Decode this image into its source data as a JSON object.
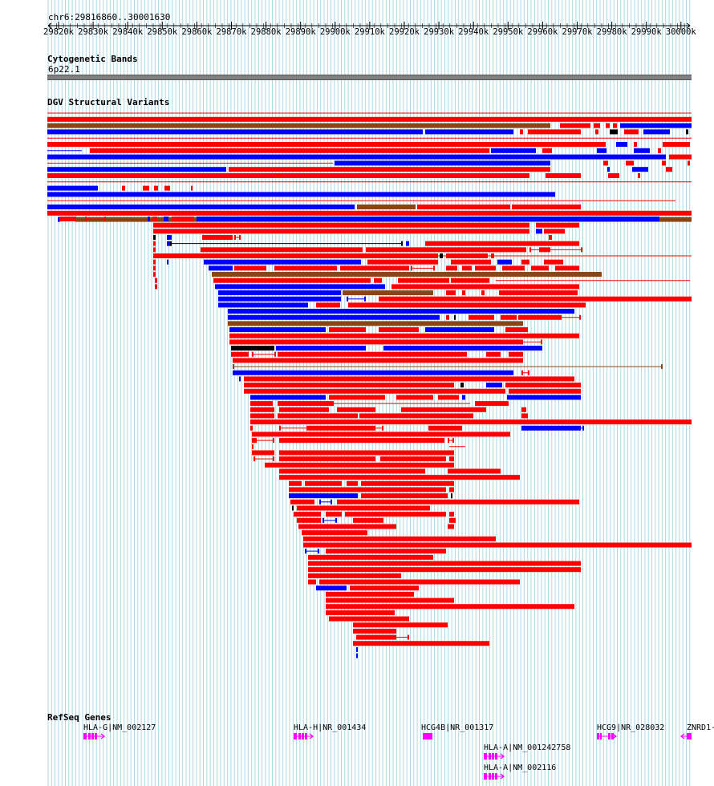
{
  "browser": {
    "location": "chr6:29816860..30001630",
    "ruler": {
      "ticks": [
        "29820k",
        "29830k",
        "29840k",
        "29850k",
        "29860k",
        "29870k",
        "29880k",
        "29890k",
        "29900k",
        "29910k",
        "29920k",
        "29930k",
        "29940k",
        "29950k",
        "29960k",
        "29970k",
        "29980k",
        "29990k",
        "30000k"
      ]
    }
  },
  "tracks": {
    "cytoband": {
      "title": "Cytogenetic Bands",
      "band": "6p22.1"
    },
    "dgv": {
      "title": "DGV Structural Variants"
    },
    "refseq": {
      "title": "RefSeq Genes",
      "genes": [
        {
          "label": "HLA-G|NM_002127",
          "color": "#ff00ff"
        },
        {
          "label": "HLA-H|NR_001434",
          "color": "#ff00ff"
        },
        {
          "label": "HCG4B|NR_001317",
          "color": "#ff00ff"
        },
        {
          "label": "HCG9|NR_028032",
          "color": "#ff00ff"
        },
        {
          "label": "ZNRD1-",
          "color": "#ff00ff"
        },
        {
          "label": "HLA-A|NM_001242758",
          "color": "#ff00ff"
        },
        {
          "label": "HLA-A|NM_002116",
          "color": "#ff00ff"
        }
      ]
    }
  },
  "colors": {
    "gain": "#ff0000",
    "loss": "#0000ff",
    "mixed": "#8b4513",
    "other": "#000000",
    "gridline": "#add8e6",
    "cytoband": "#808080",
    "gene": "#ff00ff"
  }
}
